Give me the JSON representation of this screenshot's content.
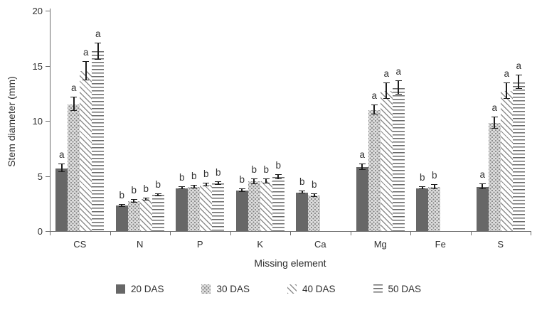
{
  "chart_data": {
    "type": "bar",
    "title": "",
    "xlabel": "Missing element",
    "ylabel": "Stem diameter (mm)",
    "ylim": [
      0,
      20
    ],
    "yticks": [
      0,
      5,
      10,
      15,
      20
    ],
    "grid": false,
    "legend_position": "bottom",
    "categories": [
      "CS",
      "N",
      "P",
      "K",
      "Ca",
      "Mg",
      "Fe",
      "S"
    ],
    "series": [
      {
        "name": "20 DAS",
        "pattern": "solid",
        "values": [
          5.7,
          2.3,
          3.9,
          3.7,
          3.5,
          5.8,
          3.9,
          4.0
        ],
        "errors": [
          0.4,
          0.15,
          0.15,
          0.2,
          0.15,
          0.3,
          0.15,
          0.3
        ],
        "letters": [
          "a",
          "b",
          "b",
          "b",
          "b",
          "a",
          "b",
          "a"
        ]
      },
      {
        "name": "30 DAS",
        "pattern": "dots",
        "values": [
          11.5,
          2.7,
          4.0,
          4.5,
          3.2,
          11.0,
          4.0,
          9.8
        ],
        "errors": [
          0.7,
          0.2,
          0.2,
          0.3,
          0.2,
          0.5,
          0.25,
          0.6
        ],
        "letters": [
          "a",
          "b",
          "b",
          "b",
          "b",
          "a",
          "b",
          "a"
        ]
      },
      {
        "name": "40 DAS",
        "pattern": "diagonal",
        "values": [
          14.5,
          2.9,
          4.2,
          4.5,
          null,
          12.7,
          null,
          12.7
        ],
        "errors": [
          0.9,
          0.15,
          0.2,
          0.25,
          null,
          0.8,
          null,
          0.8
        ],
        "letters": [
          "a",
          "b",
          "b",
          "b",
          "",
          "a",
          "",
          "a"
        ]
      },
      {
        "name": "50 DAS",
        "pattern": "horizontal",
        "values": [
          16.3,
          3.3,
          4.3,
          4.9,
          null,
          13.0,
          null,
          13.5
        ],
        "errors": [
          0.8,
          0.15,
          0.2,
          0.25,
          null,
          0.7,
          null,
          0.7
        ],
        "letters": [
          "a",
          "b",
          "b",
          "b",
          "",
          "a",
          "",
          "a"
        ]
      }
    ]
  }
}
